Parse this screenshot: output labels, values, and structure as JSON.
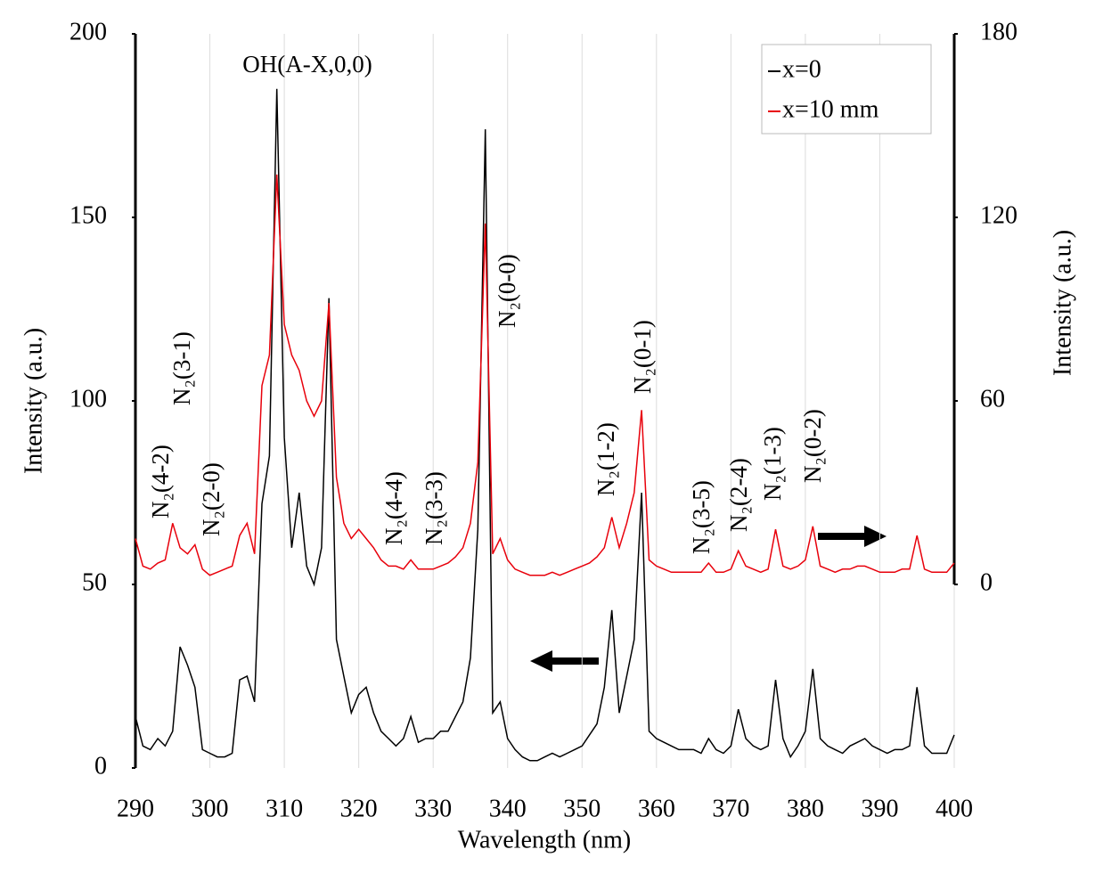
{
  "chart_data": {
    "type": "line",
    "xlabel": "Wavelength (nm)",
    "ylabel": "Intensity (a.u.)",
    "y2label": "Intensity (a.u.)",
    "x": [
      290,
      291,
      292,
      293,
      294,
      295,
      296,
      297,
      298,
      299,
      300,
      301,
      302,
      303,
      304,
      305,
      306,
      307,
      308,
      309,
      310,
      311,
      312,
      313,
      314,
      315,
      316,
      317,
      318,
      319,
      320,
      321,
      322,
      323,
      324,
      325,
      326,
      327,
      328,
      329,
      330,
      331,
      332,
      333,
      334,
      335,
      336,
      337,
      338,
      339,
      340,
      341,
      342,
      343,
      344,
      345,
      346,
      347,
      348,
      349,
      350,
      351,
      352,
      353,
      354,
      355,
      356,
      357,
      358,
      359,
      360,
      361,
      362,
      363,
      364,
      365,
      366,
      367,
      368,
      369,
      370,
      371,
      372,
      373,
      374,
      375,
      376,
      377,
      378,
      379,
      380,
      381,
      382,
      383,
      384,
      385,
      386,
      387,
      388,
      389,
      390,
      391,
      392,
      393,
      394,
      395,
      396,
      397,
      398,
      399,
      400
    ],
    "series": [
      {
        "name": "x=0",
        "color": "#000000",
        "axis": "y",
        "values": [
          14,
          6,
          5,
          8,
          6,
          10,
          33,
          28,
          22,
          5,
          4,
          3,
          3,
          4,
          24,
          25,
          18,
          72,
          85,
          185,
          90,
          60,
          75,
          55,
          50,
          60,
          128,
          35,
          25,
          15,
          20,
          22,
          15,
          10,
          8,
          6,
          8,
          14,
          7,
          8,
          8,
          10,
          10,
          14,
          18,
          30,
          65,
          174,
          15,
          18,
          8,
          5,
          3,
          2,
          2,
          3,
          4,
          3,
          4,
          5,
          6,
          9,
          12,
          22,
          43,
          15,
          25,
          35,
          75,
          10,
          8,
          7,
          6,
          5,
          5,
          5,
          4,
          8,
          5,
          4,
          6,
          16,
          8,
          6,
          5,
          6,
          24,
          8,
          3,
          6,
          10,
          27,
          8,
          6,
          5,
          4,
          6,
          7,
          8,
          6,
          5,
          4,
          5,
          5,
          6,
          22,
          6,
          4,
          4,
          4,
          9
        ]
      },
      {
        "name": "x=10 mm",
        "color": "#e8000b",
        "axis": "y2",
        "values": [
          15,
          6,
          5,
          7,
          8,
          20,
          12,
          10,
          13,
          5,
          3,
          4,
          5,
          6,
          16,
          20,
          10,
          65,
          75,
          134,
          85,
          75,
          70,
          60,
          55,
          60,
          92,
          35,
          20,
          15,
          18,
          15,
          12,
          8,
          6,
          6,
          5,
          8,
          5,
          5,
          5,
          6,
          7,
          9,
          12,
          20,
          40,
          118,
          10,
          15,
          8,
          5,
          4,
          3,
          3,
          3,
          4,
          3,
          4,
          5,
          6,
          7,
          9,
          12,
          22,
          12,
          20,
          30,
          57,
          8,
          6,
          5,
          4,
          4,
          4,
          4,
          4,
          7,
          4,
          4,
          5,
          11,
          6,
          5,
          4,
          5,
          18,
          6,
          5,
          6,
          8,
          19,
          6,
          5,
          4,
          5,
          5,
          6,
          6,
          5,
          4,
          4,
          4,
          5,
          5,
          16,
          5,
          4,
          4,
          4,
          7
        ]
      }
    ],
    "xlim": [
      290,
      400
    ],
    "xticks": [
      290,
      300,
      310,
      320,
      330,
      340,
      350,
      360,
      370,
      380,
      390,
      400
    ],
    "ylim": [
      0,
      200
    ],
    "yticks": [
      0,
      50,
      100,
      150,
      200
    ],
    "y2lim": [
      -60,
      180
    ],
    "y2ticks": [
      0,
      60,
      120,
      180
    ],
    "grid": true,
    "legend": "upper right",
    "annotations": [
      "OH(A-X,0,0)",
      "N₂(4-2)",
      "N₂(3-1)",
      "N₂(2-0)",
      "N₂(4-4)",
      "N₂(3-3)",
      "N₂(0-0)",
      "N₂(1-2)",
      "N₂(0-1)",
      "N₂(3-5)",
      "N₂(2-4)",
      "N₂(1-3)",
      "N₂(0-2)"
    ]
  }
}
